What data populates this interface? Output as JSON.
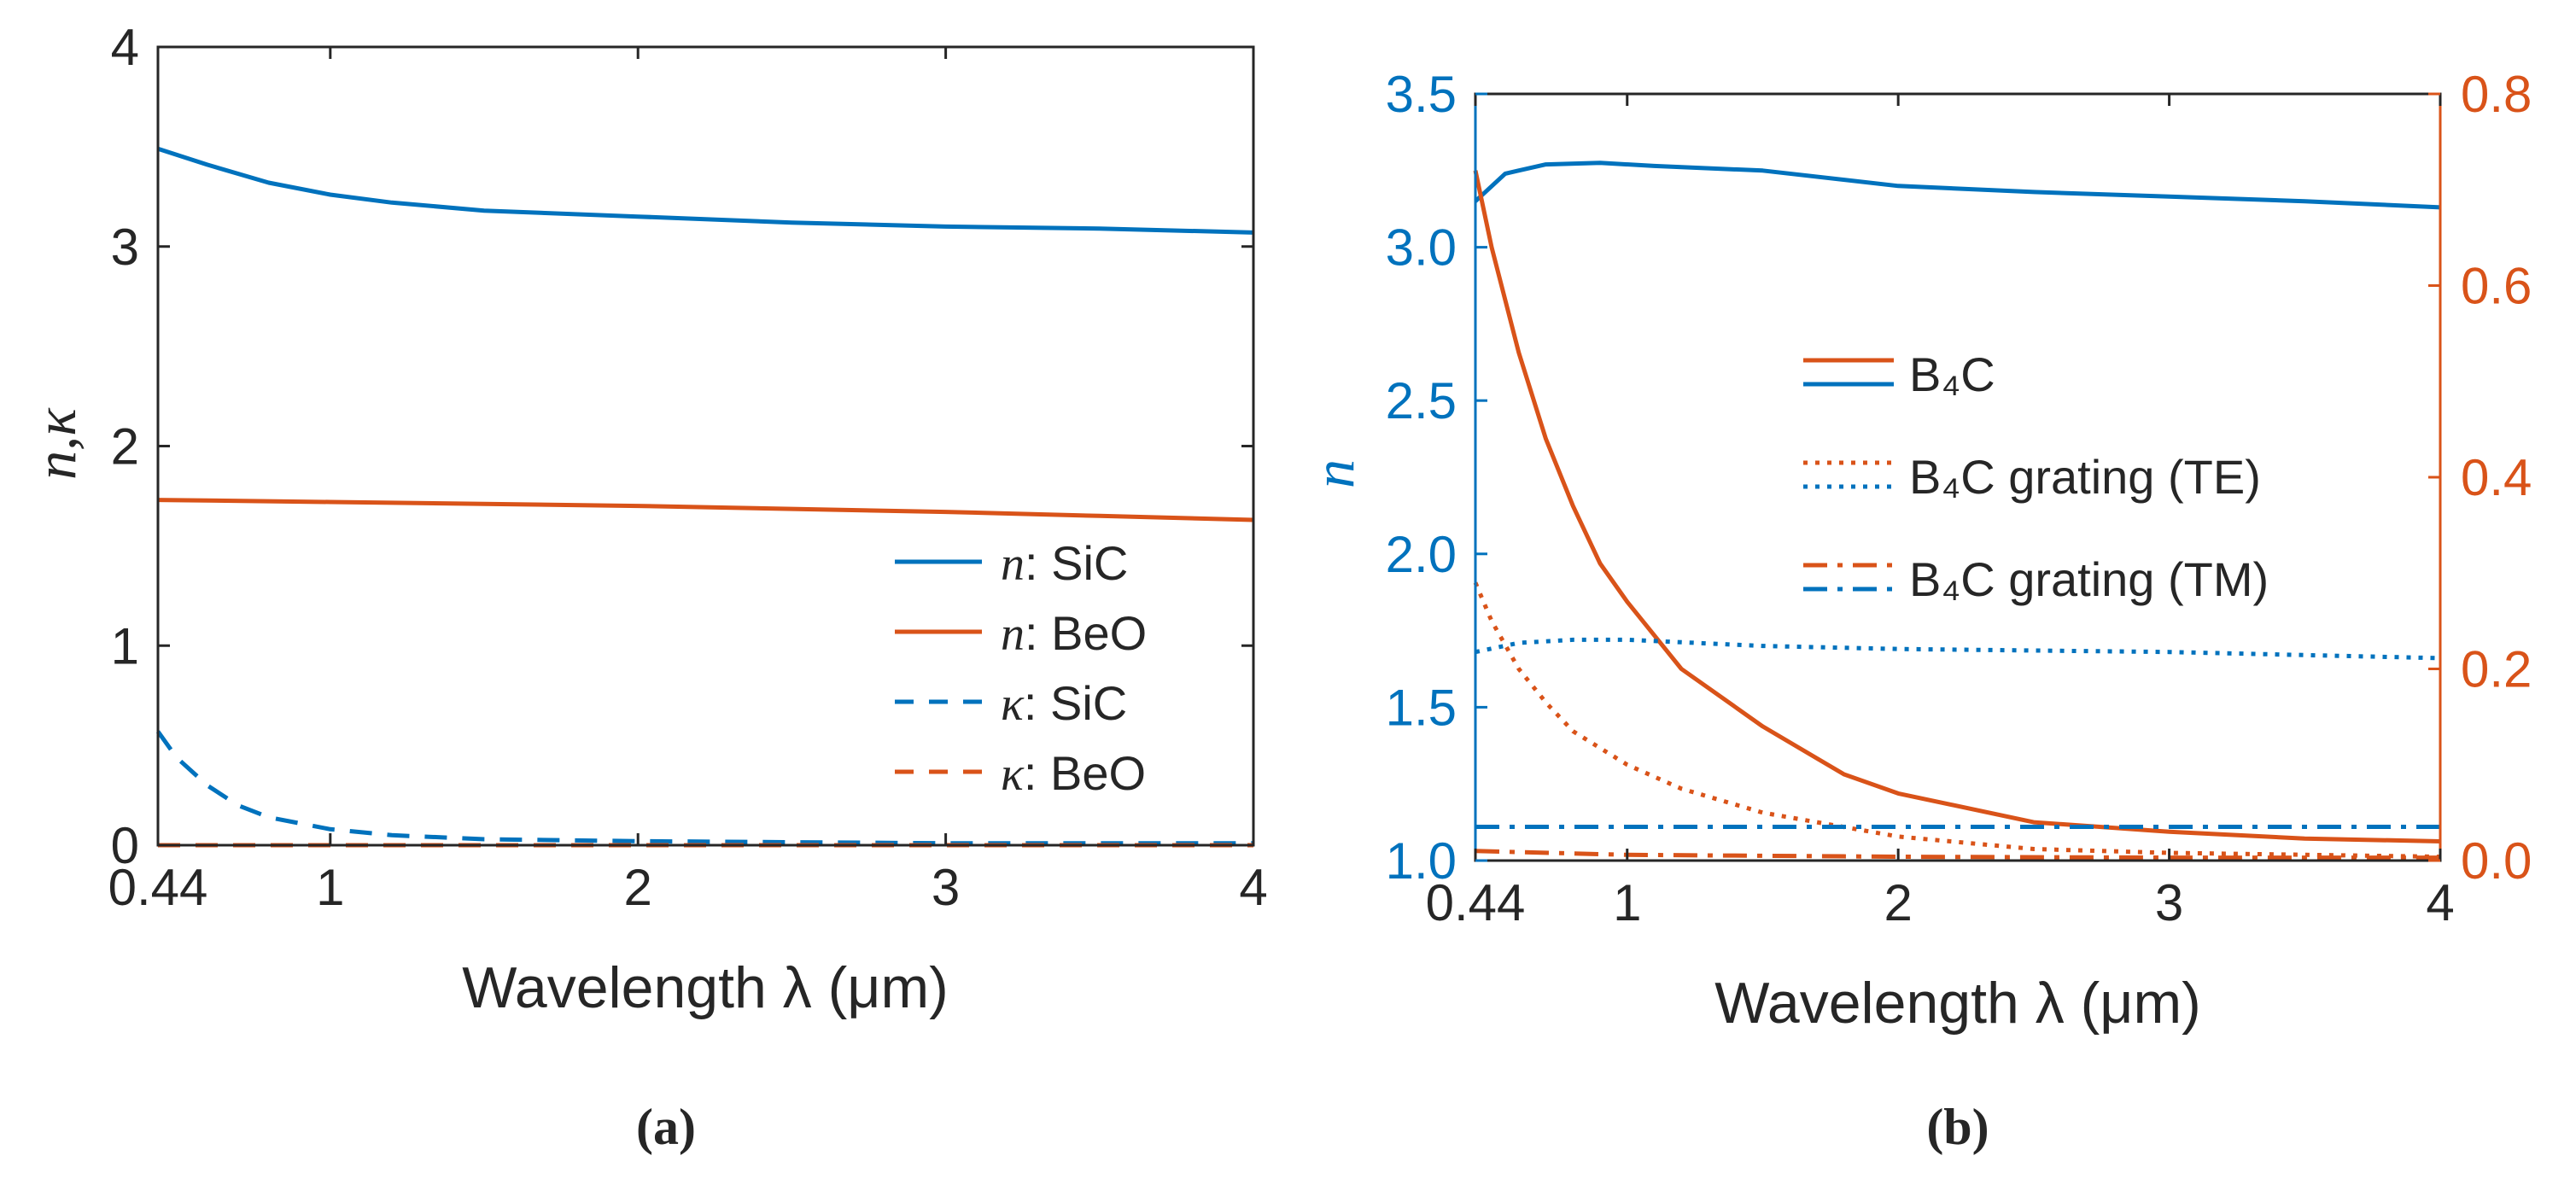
{
  "colors": {
    "blue": "#0072BD",
    "orange": "#D95319",
    "axis": "#262626",
    "text": "#262626"
  },
  "chart_data": [
    {
      "type": "line",
      "panel_label": "(a)",
      "xlabel": "Wavelength λ (μm)",
      "ylabel": "n,κ",
      "xlim": [
        0.44,
        4
      ],
      "ylim": [
        0,
        4
      ],
      "xticks": [
        0.44,
        1,
        2,
        3,
        4
      ],
      "xtick_labels": [
        "0.44",
        "1",
        "2",
        "3",
        "4"
      ],
      "yticks": [
        0,
        1,
        2,
        3,
        4
      ],
      "ytick_labels": [
        "0",
        "1",
        "2",
        "3",
        "4"
      ],
      "legend_position": "bottom-right",
      "series": [
        {
          "name": "n: SiC",
          "legend_prefix": "n",
          "legend_rest": ": SiC",
          "color": "blue",
          "style": "solid",
          "x": [
            0.44,
            0.6,
            0.8,
            1.0,
            1.2,
            1.5,
            2.0,
            2.5,
            3.0,
            3.5,
            4.0
          ],
          "y": [
            3.49,
            3.41,
            3.32,
            3.26,
            3.22,
            3.18,
            3.15,
            3.12,
            3.1,
            3.09,
            3.07
          ]
        },
        {
          "name": "n: BeO",
          "legend_prefix": "n",
          "legend_rest": ": BeO",
          "color": "orange",
          "style": "solid",
          "x": [
            0.44,
            1.0,
            2.0,
            3.0,
            3.5,
            4.0
          ],
          "y": [
            1.73,
            1.72,
            1.7,
            1.67,
            1.65,
            1.63
          ]
        },
        {
          "name": "κ: SiC",
          "legend_prefix": "κ",
          "legend_rest": ": SiC",
          "color": "blue",
          "style": "dashed",
          "x": [
            0.44,
            0.5,
            0.6,
            0.7,
            0.8,
            1.0,
            1.2,
            1.5,
            2.0,
            3.0,
            4.0
          ],
          "y": [
            0.57,
            0.44,
            0.3,
            0.2,
            0.14,
            0.08,
            0.05,
            0.03,
            0.02,
            0.01,
            0.01
          ]
        },
        {
          "name": "κ: BeO",
          "legend_prefix": "κ",
          "legend_rest": ": BeO",
          "color": "orange",
          "style": "dashed",
          "x": [
            0.44,
            4.0
          ],
          "y": [
            0.0,
            0.0
          ]
        }
      ]
    },
    {
      "type": "line",
      "panel_label": "(b)",
      "xlabel": "Wavelength λ (μm)",
      "ylabel": "n",
      "xlim": [
        0.44,
        4
      ],
      "ylim": [
        1.0,
        3.5
      ],
      "xticks": [
        0.44,
        1,
        2,
        3,
        4
      ],
      "xtick_labels": [
        "0.44",
        "1",
        "2",
        "3",
        "4"
      ],
      "yticks": [
        1.0,
        1.5,
        2.0,
        2.5,
        3.0,
        3.5
      ],
      "ytick_labels": [
        "1.0",
        "1.5",
        "2.0",
        "2.5",
        "3.0",
        "3.5"
      ],
      "y2lim": [
        0,
        0.8
      ],
      "y2ticks": [
        0,
        0.2,
        0.4,
        0.6,
        0.8
      ],
      "y2tick_labels": [
        "0.0",
        "0.2",
        "0.4",
        "0.6",
        "0.8"
      ],
      "legend_position": "center-right",
      "legend": [
        {
          "label": "B₄C",
          "style": "solid"
        },
        {
          "label": "B₄C grating (TE)",
          "style": "dotted"
        },
        {
          "label": "B₄C grating (TM)",
          "style": "dashdot"
        }
      ],
      "series": [
        {
          "name": "n: B₄C",
          "axis": "left",
          "color": "blue",
          "style": "solid",
          "x": [
            0.44,
            0.55,
            0.7,
            0.9,
            1.1,
            1.5,
            2.0,
            2.5,
            3.0,
            3.5,
            4.0
          ],
          "y": [
            3.15,
            3.24,
            3.27,
            3.275,
            3.265,
            3.25,
            3.2,
            3.18,
            3.165,
            3.15,
            3.13
          ]
        },
        {
          "name": "κ: B₄C",
          "axis": "right",
          "color": "orange",
          "style": "solid",
          "x": [
            0.44,
            0.5,
            0.6,
            0.7,
            0.8,
            0.9,
            1.0,
            1.2,
            1.5,
            1.8,
            2.0,
            2.5,
            3.0,
            3.5,
            4.0
          ],
          "y": [
            0.72,
            0.64,
            0.53,
            0.44,
            0.37,
            0.31,
            0.27,
            0.2,
            0.14,
            0.09,
            0.07,
            0.04,
            0.03,
            0.023,
            0.02
          ]
        },
        {
          "name": "n: B₄C grating (TE)",
          "axis": "left",
          "color": "blue",
          "style": "dotted",
          "x": [
            0.44,
            0.6,
            0.8,
            1.0,
            1.5,
            2.0,
            3.0,
            4.0
          ],
          "y": [
            1.68,
            1.71,
            1.72,
            1.72,
            1.7,
            1.69,
            1.68,
            1.66
          ]
        },
        {
          "name": "κ: B₄C grating (TE)",
          "axis": "right",
          "color": "orange",
          "style": "dotted",
          "x": [
            0.44,
            0.5,
            0.6,
            0.7,
            0.8,
            1.0,
            1.2,
            1.5,
            2.0,
            2.5,
            3.0,
            4.0
          ],
          "y": [
            0.29,
            0.25,
            0.2,
            0.165,
            0.135,
            0.1,
            0.075,
            0.05,
            0.025,
            0.012,
            0.008,
            0.004
          ]
        },
        {
          "name": "n: B₄C grating (TM)",
          "axis": "left",
          "color": "blue",
          "style": "dashdot",
          "x": [
            0.44,
            4.0
          ],
          "y": [
            1.11,
            1.11
          ]
        },
        {
          "name": "κ: B₄C grating (TM)",
          "axis": "right",
          "color": "orange",
          "style": "dashdot",
          "x": [
            0.44,
            1.0,
            2.0,
            3.0,
            4.0
          ],
          "y": [
            0.01,
            0.006,
            0.004,
            0.003,
            0.003
          ]
        }
      ]
    }
  ]
}
